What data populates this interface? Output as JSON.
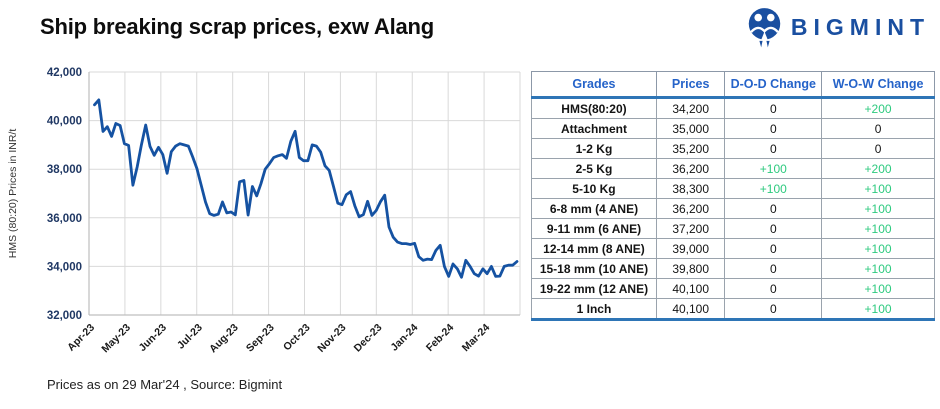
{
  "header": {
    "title": "Ship breaking scrap prices, exw Alang",
    "brand": "BIGMINT"
  },
  "colors": {
    "brand_blue": "#1a4fa0",
    "line_blue": "#1552a2",
    "header_blue": "#2563c9",
    "table_accent_blue": "#2e75b6",
    "positive_green": "#2eca7f",
    "ytick_navy": "#203864",
    "grid_gray": "#d9d9d9",
    "axis_gray": "#bfbfbf"
  },
  "chart_data": {
    "type": "line",
    "title": "",
    "xlabel": "",
    "ylabel": "HMS (80:20) Prices in INR/t",
    "x_labels": [
      "Apr-23",
      "May-23",
      "Jun-23",
      "Jul-23",
      "Aug-23",
      "Sep-23",
      "Oct-23",
      "Nov-23",
      "Dec-23",
      "Jan-24",
      "Feb-24",
      "Mar-24"
    ],
    "ylim": [
      32000,
      42000
    ],
    "ytick_step": 2000,
    "grid": true,
    "legend": "none",
    "series": [
      {
        "name": "HMS (80:20) ship breaking scrap price, exw Alang (INR/t)",
        "values": [
          40650,
          40850,
          39550,
          39750,
          39350,
          39880,
          39800,
          39050,
          38980,
          37340,
          38100,
          39000,
          39820,
          38940,
          38570,
          38900,
          38600,
          37830,
          38720,
          38950,
          39050,
          39000,
          38950,
          38500,
          38030,
          37340,
          36650,
          36170,
          36100,
          36150,
          36650,
          36200,
          36240,
          36120,
          37480,
          37540,
          36110,
          37290,
          36900,
          37400,
          38000,
          38230,
          38480,
          38550,
          38600,
          38450,
          39150,
          39560,
          38480,
          38350,
          38350,
          39000,
          38950,
          38700,
          38140,
          37950,
          37290,
          36600,
          36540,
          36950,
          37080,
          36500,
          36040,
          36130,
          36680,
          36100,
          36300,
          36660,
          36930,
          35620,
          35200,
          35000,
          34940,
          34940,
          34900,
          34950,
          34400,
          34250,
          34300,
          34280,
          34660,
          34870,
          34000,
          33590,
          34100,
          33900,
          33550,
          34250,
          34000,
          33700,
          33600,
          33900,
          33700,
          34000,
          33590,
          33600,
          34000,
          34050,
          34050,
          34200
        ]
      }
    ]
  },
  "table": {
    "columns": [
      "Grades",
      "Prices",
      "D-O-D Change",
      "W-O-W Change"
    ],
    "rows": [
      {
        "grade": "HMS(80:20)",
        "price": "34,200",
        "dod": "0",
        "wow": "+200"
      },
      {
        "grade": "Attachment",
        "price": "35,000",
        "dod": "0",
        "wow": "0"
      },
      {
        "grade": "1-2 Kg",
        "price": "35,200",
        "dod": "0",
        "wow": "0"
      },
      {
        "grade": "2-5 Kg",
        "price": "36,200",
        "dod": "+100",
        "wow": "+200"
      },
      {
        "grade": "5-10 Kg",
        "price": "38,300",
        "dod": "+100",
        "wow": "+100"
      },
      {
        "grade": "6-8 mm (4 ANE)",
        "price": "36,200",
        "dod": "0",
        "wow": "+100"
      },
      {
        "grade": "9-11 mm (6 ANE)",
        "price": "37,200",
        "dod": "0",
        "wow": "+100"
      },
      {
        "grade": "12-14 mm (8 ANE)",
        "price": "39,000",
        "dod": "0",
        "wow": "+100"
      },
      {
        "grade": "15-18 mm (10 ANE)",
        "price": "39,800",
        "dod": "0",
        "wow": "+100"
      },
      {
        "grade": "19-22 mm (12 ANE)",
        "price": "40,100",
        "dod": "0",
        "wow": "+100"
      },
      {
        "grade": "1 Inch",
        "price": "40,100",
        "dod": "0",
        "wow": "+100"
      }
    ]
  },
  "footer": {
    "note": "Prices as on 29 Mar'24 , Source: Bigmint"
  }
}
